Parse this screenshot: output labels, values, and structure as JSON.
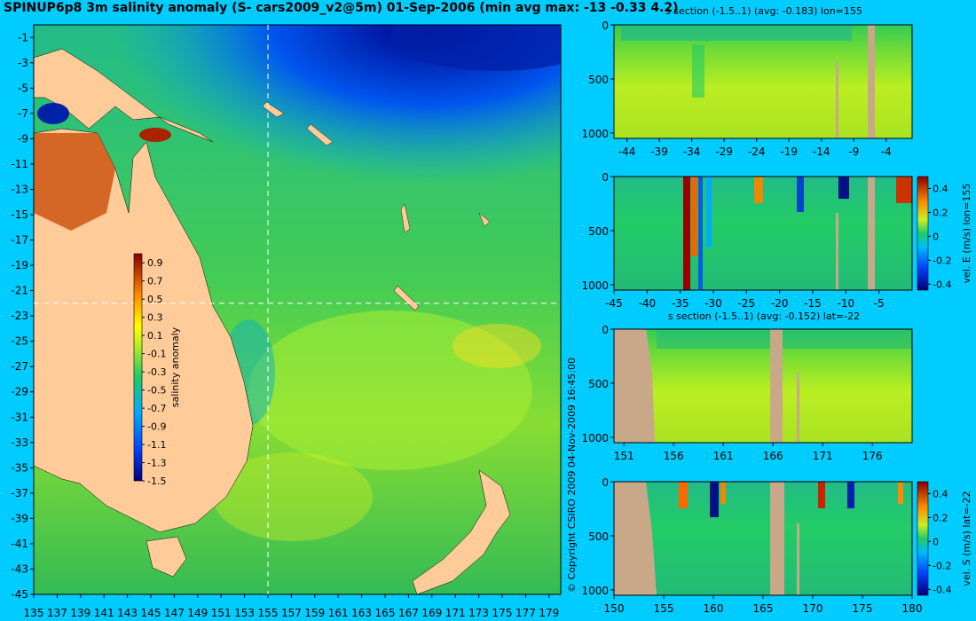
{
  "title": "SPINUP6p8 3m salinity anomaly (S- cars2009_v2@5m) 01-Sep-2006 (min avg max: -13 -0.33 4.2)",
  "copyright": "© Copyright CSIRO 2009   04-Nov-2009 16:45:00",
  "colors": {
    "background": "#00ccff",
    "land": "#ffcc99",
    "section_mask": "#c8a888",
    "crosshair": "#ffffff"
  },
  "chart_data": [
    {
      "id": "map",
      "type": "heatmap",
      "title": "SPINUP6p8 3m salinity anomaly (S- cars2009_v2@5m) 01-Sep-2006 (min avg max: -13 -0.33 4.2)",
      "xlim": [
        135,
        180
      ],
      "ylim": [
        -45,
        0
      ],
      "x_ticks": [
        135,
        137,
        139,
        141,
        143,
        145,
        147,
        149,
        151,
        153,
        155,
        157,
        159,
        161,
        163,
        165,
        167,
        169,
        171,
        173,
        175,
        177,
        179
      ],
      "y_ticks": [
        -1,
        -3,
        -5,
        -7,
        -9,
        -11,
        -13,
        -15,
        -17,
        -19,
        -21,
        -23,
        -25,
        -27,
        -29,
        -31,
        -33,
        -35,
        -37,
        -39,
        -41,
        -43,
        -45
      ],
      "crosshair": {
        "lon": 155,
        "lat": -22
      },
      "colorbar": {
        "label": "salinity anomaly",
        "ticks": [
          0.9,
          0.7,
          0.5,
          0.3,
          0.1,
          -0.1,
          -0.3,
          -0.5,
          -0.7,
          -0.9,
          -1.1,
          -1.3,
          -1.5
        ],
        "range": [
          -1.5,
          1.0
        ]
      }
    },
    {
      "id": "s-section-lon",
      "type": "heatmap",
      "title": "s section (-1.5..1) (avg: -0.183) lon=155",
      "xlim": [
        -46,
        0
      ],
      "x_ticks": [
        -44,
        -39,
        -34,
        -29,
        -24,
        -19,
        -14,
        -9,
        -4
      ],
      "ylim": [
        1050,
        0
      ],
      "y_ticks": [
        0,
        500,
        1000
      ]
    },
    {
      "id": "vel-e-section",
      "type": "heatmap",
      "title": "",
      "xlim": [
        -45,
        0
      ],
      "x_ticks": [
        -45,
        -40,
        -35,
        -30,
        -25,
        -20,
        -15,
        -10,
        -5
      ],
      "ylim": [
        1050,
        0
      ],
      "y_ticks": [
        0,
        500,
        1000
      ],
      "colorbar": {
        "label": "vel. E (m/s) lon=155",
        "ticks": [
          0.4,
          0.2,
          0,
          -0.2,
          -0.4
        ]
      }
    },
    {
      "id": "s-section-lat",
      "type": "heatmap",
      "title": "s section (-1.5..1) (avg: -0.152) lat=-22",
      "xlim": [
        150,
        180
      ],
      "x_ticks": [
        151,
        156,
        161,
        166,
        171,
        176
      ],
      "ylim": [
        1050,
        0
      ],
      "y_ticks": [
        0,
        500,
        1000
      ]
    },
    {
      "id": "vel-s-section",
      "type": "heatmap",
      "title": "",
      "xlim": [
        150,
        180
      ],
      "x_ticks": [
        150,
        155,
        160,
        165,
        170,
        175,
        180
      ],
      "ylim": [
        1050,
        0
      ],
      "y_ticks": [
        0,
        500,
        1000
      ],
      "colorbar": {
        "label": "vel. S (m/s) lat=-22",
        "ticks": [
          0.4,
          0.2,
          0,
          -0.2,
          -0.4
        ]
      }
    }
  ]
}
